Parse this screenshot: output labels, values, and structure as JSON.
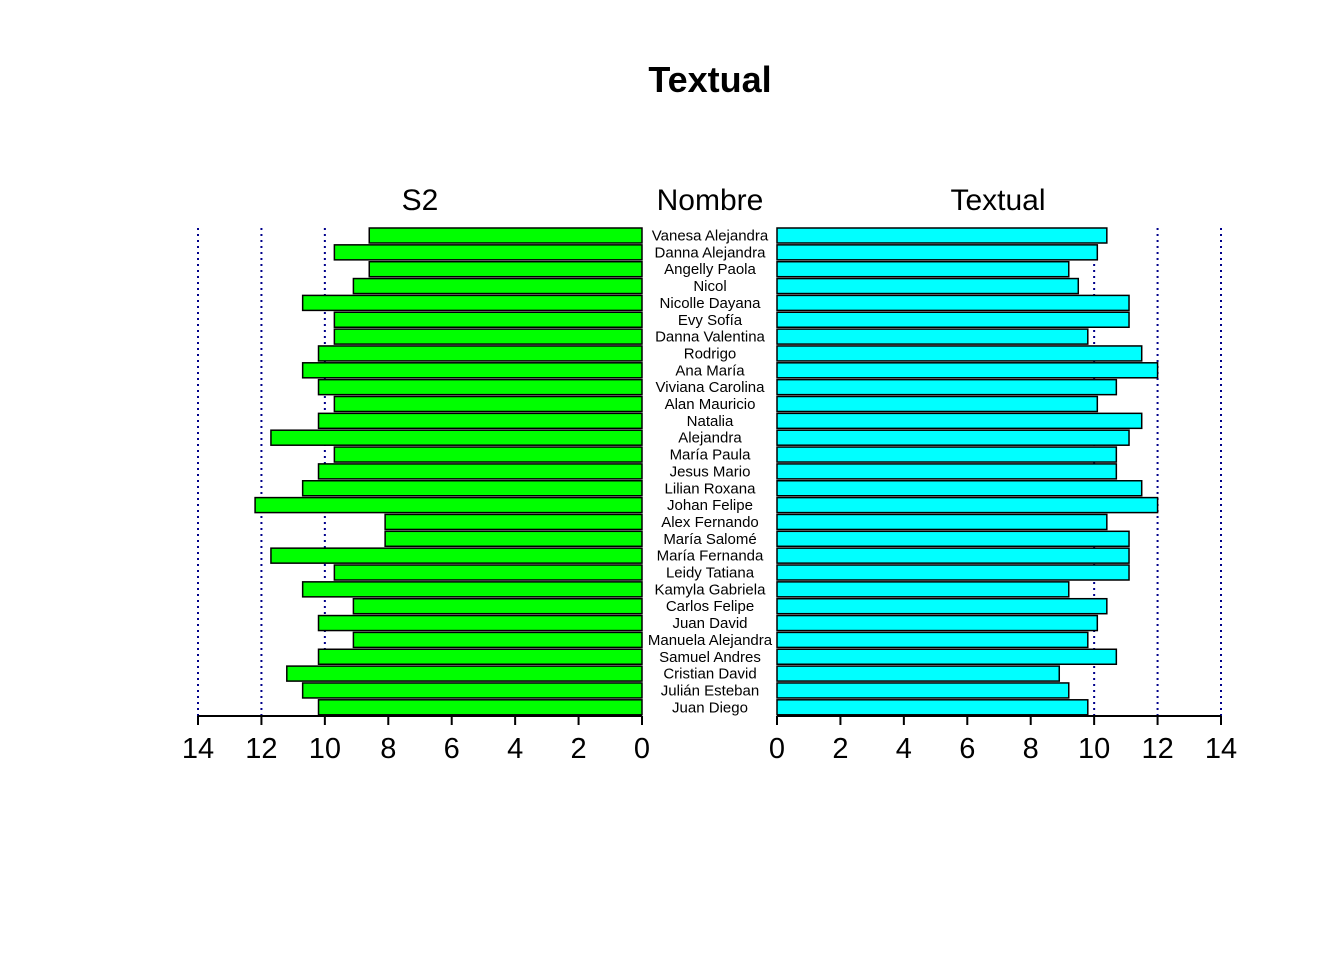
{
  "chart_data": {
    "type": "bar",
    "title": "Textual",
    "left_label": "S2",
    "center_label": "Nombre",
    "right_label": "Textual",
    "categories": [
      "Vanesa Alejandra",
      "Danna Alejandra",
      "Angelly Paola",
      "Nicol",
      "Nicolle Dayana",
      "Evy Sofía",
      "Danna Valentina",
      "Rodrigo",
      "Ana María",
      "Viviana Carolina",
      "Alan Mauricio",
      "Natalia",
      "Alejandra",
      "María Paula",
      "Jesus Mario",
      "Lilian Roxana",
      "Johan Felipe",
      "Alex Fernando",
      "María Salomé",
      "María Fernanda",
      "Leidy Tatiana",
      "Kamyla Gabriela",
      "Carlos Felipe",
      "Juan David",
      "Manuela Alejandra",
      "Samuel Andres",
      "Cristian David",
      "Julián Esteban",
      "Juan Diego"
    ],
    "series": [
      {
        "name": "S2",
        "color": "#00ff00",
        "values": [
          8.6,
          9.7,
          8.6,
          9.1,
          10.7,
          9.7,
          9.7,
          10.2,
          10.7,
          10.2,
          9.7,
          10.2,
          11.7,
          9.7,
          10.2,
          10.7,
          12.2,
          8.1,
          8.1,
          11.7,
          9.7,
          10.7,
          9.1,
          10.2,
          9.1,
          10.2,
          11.2,
          10.7,
          10.2
        ]
      },
      {
        "name": "Textual",
        "color": "#00ffff",
        "values": [
          10.4,
          10.1,
          9.2,
          9.5,
          11.1,
          11.1,
          9.8,
          11.5,
          12.0,
          10.7,
          10.1,
          11.5,
          11.1,
          10.7,
          10.7,
          11.5,
          12.0,
          10.4,
          11.1,
          11.1,
          11.1,
          9.2,
          10.4,
          10.1,
          9.8,
          10.7,
          8.9,
          9.2,
          9.8
        ]
      }
    ],
    "xlim": [
      0,
      14
    ],
    "ticks": [
      "0",
      "2",
      "4",
      "6",
      "8",
      "10",
      "12",
      "14"
    ],
    "gridlines": [
      10,
      12,
      14
    ],
    "grid_color": "#00008b"
  }
}
